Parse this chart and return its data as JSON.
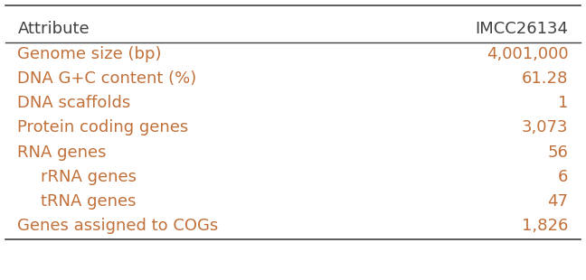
{
  "title_left": "Attribute",
  "title_right": "IMCC26134",
  "rows": [
    {
      "label": "Genome size (bp)",
      "indent": false,
      "value": "4,001,000"
    },
    {
      "label": "DNA G+C content (%)",
      "indent": false,
      "value": "61.28"
    },
    {
      "label": "DNA scaffolds",
      "indent": false,
      "value": "1"
    },
    {
      "label": "Protein coding genes",
      "indent": false,
      "value": "3,073"
    },
    {
      "label": "RNA genes",
      "indent": false,
      "value": "56"
    },
    {
      "label": "rRNA genes",
      "indent": true,
      "value": "6"
    },
    {
      "label": "tRNA genes",
      "indent": true,
      "value": "47"
    },
    {
      "label": "Genes assigned to COGs",
      "indent": false,
      "value": "1,826"
    }
  ],
  "text_color": "#c1703a",
  "header_color": "#404040",
  "bg_color": "#ffffff",
  "font_size": 13,
  "header_font_size": 13,
  "line_color": "#404040",
  "font_family": "DejaVu Sans"
}
